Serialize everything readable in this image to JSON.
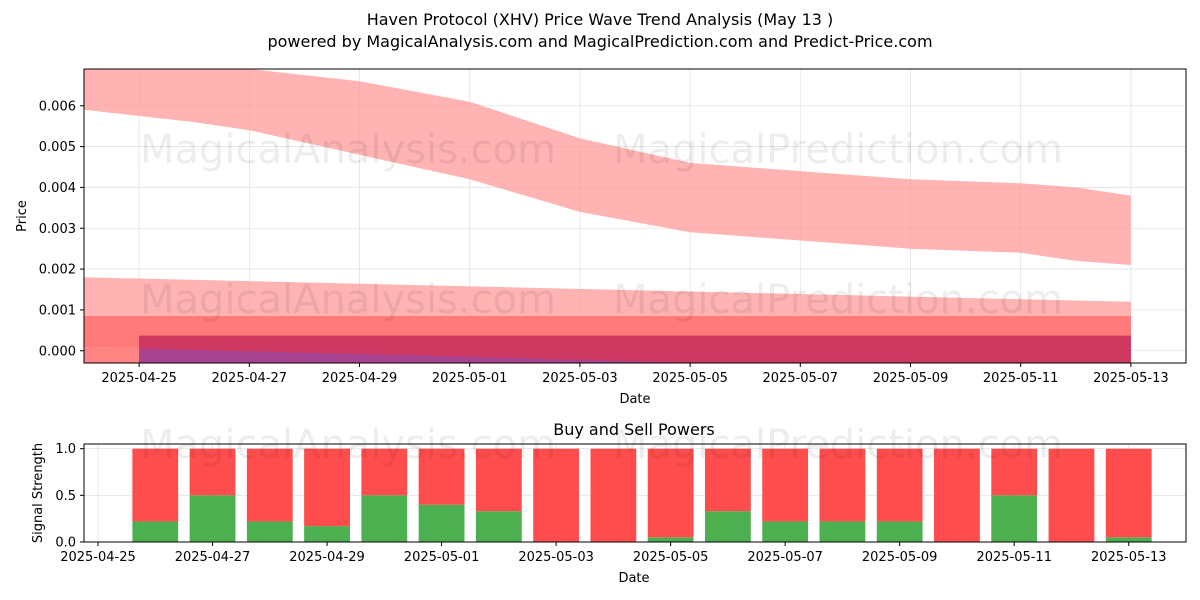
{
  "title": "Haven Protocol (XHV) Price Wave Trend Analysis (May 13 )",
  "subtitle": "powered by MagicalAnalysis.com and MagicalPrediction.com and Predict-Price.com",
  "watermarks": [
    "MagicalAnalysis.com",
    "MagicalPrediction.com"
  ],
  "chart_data": [
    {
      "type": "area",
      "xlabel": "Date",
      "ylabel": "Price",
      "xlim": [
        "2025-04-24",
        "2025-05-14"
      ],
      "ylim": [
        -0.0003,
        0.0069
      ],
      "grid": true,
      "x_ticks": [
        "2025-04-25",
        "2025-04-27",
        "2025-04-29",
        "2025-05-01",
        "2025-05-03",
        "2025-05-05",
        "2025-05-07",
        "2025-05-09",
        "2025-05-11",
        "2025-05-13"
      ],
      "y_ticks": [
        "0.000",
        "0.001",
        "0.002",
        "0.003",
        "0.004",
        "0.005",
        "0.006"
      ],
      "series": [
        {
          "color": "#ff9999",
          "points": [
            {
              "x": "2025-04-24",
              "lo": 0.0059,
              "hi": 0.0069
            },
            {
              "x": "2025-04-26",
              "lo": 0.0056,
              "hi": 0.007
            },
            {
              "x": "2025-04-27",
              "lo": 0.0054,
              "hi": 0.007
            },
            {
              "x": "2025-04-29",
              "lo": 0.0048,
              "hi": 0.0066
            },
            {
              "x": "2025-05-01",
              "lo": 0.0042,
              "hi": 0.0061
            },
            {
              "x": "2025-05-03",
              "lo": 0.0034,
              "hi": 0.0052
            },
            {
              "x": "2025-05-05",
              "lo": 0.0029,
              "hi": 0.0046
            },
            {
              "x": "2025-05-07",
              "lo": 0.0027,
              "hi": 0.0044
            },
            {
              "x": "2025-05-09",
              "lo": 0.0025,
              "hi": 0.0042
            },
            {
              "x": "2025-05-11",
              "lo": 0.0024,
              "hi": 0.0041
            },
            {
              "x": "2025-05-12",
              "lo": 0.0022,
              "hi": 0.004
            },
            {
              "x": "2025-05-13",
              "lo": 0.0021,
              "hi": 0.0038
            }
          ]
        },
        {
          "color": "#ff9999",
          "points": [
            {
              "x": "2025-04-24",
              "lo": 0.0001,
              "hi": 0.0018
            },
            {
              "x": "2025-05-13",
              "lo": -0.0003,
              "hi": 0.0012
            }
          ]
        },
        {
          "color": "#ff7070",
          "points": [
            {
              "x": "2025-04-24",
              "lo": -0.0003,
              "hi": 0.00085
            },
            {
              "x": "2025-05-13",
              "lo": -0.0003,
              "hi": 0.00085
            }
          ]
        },
        {
          "color": "#c42b5c",
          "points": [
            {
              "x": "2025-04-25",
              "lo": -0.0003,
              "hi": 0.00037
            },
            {
              "x": "2025-05-13",
              "lo": -0.0003,
              "hi": 0.00037
            }
          ]
        },
        {
          "color": "#a0449a",
          "points": [
            {
              "x": "2025-04-25",
              "lo": -0.0003,
              "hi": 5e-05
            },
            {
              "x": "2025-04-29",
              "lo": -0.0003,
              "hi": -8e-05
            },
            {
              "x": "2025-05-03",
              "lo": -0.0003,
              "hi": -0.00022
            },
            {
              "x": "2025-05-05",
              "lo": -0.0003,
              "hi": -0.0003
            }
          ]
        }
      ]
    },
    {
      "type": "bar",
      "title": "Buy and Sell Powers",
      "xlabel": "Date",
      "ylabel": "Signal Strength",
      "xlim": [
        "2025-04-25",
        "2025-05-14"
      ],
      "ylim": [
        0,
        1.05
      ],
      "grid": true,
      "x_ticks": [
        "2025-04-25",
        "2025-04-27",
        "2025-04-29",
        "2025-05-01",
        "2025-05-03",
        "2025-05-05",
        "2025-05-07",
        "2025-05-09",
        "2025-05-11",
        "2025-05-13"
      ],
      "y_ticks": [
        "0.0",
        "0.5",
        "1.0"
      ],
      "colors": {
        "buy": "#4caf50",
        "sell": "#ff4d4d"
      },
      "categories": [
        "2025-04-26",
        "2025-04-27",
        "2025-04-28",
        "2025-04-29",
        "2025-04-30",
        "2025-05-01",
        "2025-05-02",
        "2025-05-03",
        "2025-05-04",
        "2025-05-05",
        "2025-05-06",
        "2025-05-07",
        "2025-05-08",
        "2025-05-09",
        "2025-05-10",
        "2025-05-11",
        "2025-05-12",
        "2025-05-13"
      ],
      "series": [
        {
          "values": [
            0.22,
            0.5,
            0.22,
            0.17,
            0.5,
            0.4,
            0.33,
            0,
            0,
            0.05,
            0.33,
            0.22,
            0.22,
            0.22,
            0,
            0.5,
            0,
            0.05
          ]
        },
        {
          "values": [
            0.78,
            0.5,
            0.78,
            0.83,
            0.5,
            0.6,
            0.67,
            1,
            1,
            0.95,
            0.67,
            0.78,
            0.78,
            0.78,
            1,
            0.5,
            1,
            0.95
          ]
        }
      ]
    }
  ]
}
